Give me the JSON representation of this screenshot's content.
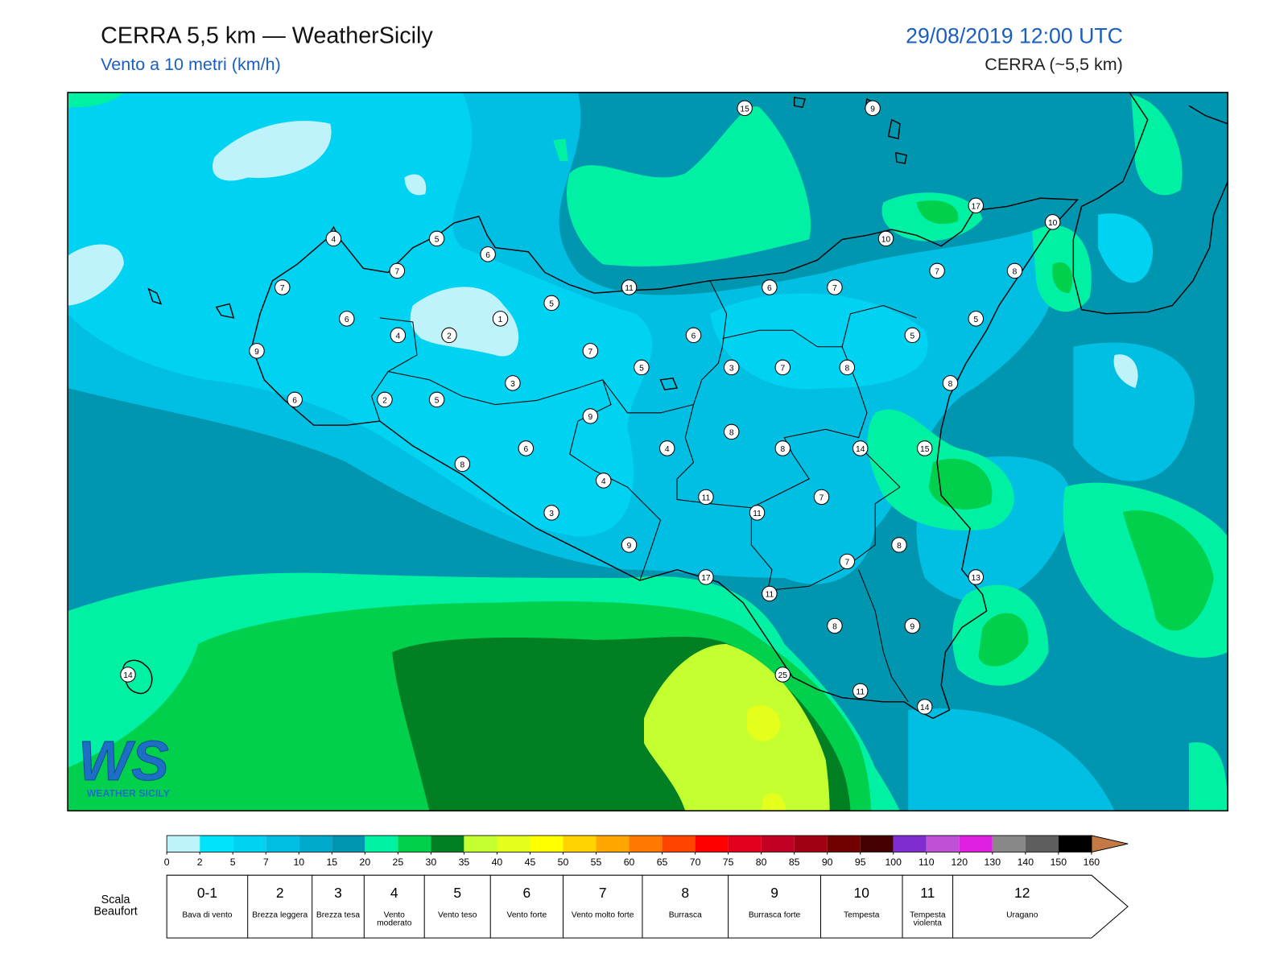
{
  "header": {
    "title": "CERRA 5,5 km — WeatherSicily",
    "subtitle": "Vento a 10 metri (km/h)",
    "datetime": "29/08/2019 12:00 UTC",
    "model": "CERRA (~5,5 km)"
  },
  "map": {
    "stations": [
      15,
      9,
      17,
      10,
      10,
      4,
      5,
      6,
      7,
      11,
      7,
      6,
      7,
      7,
      8,
      5,
      6,
      1,
      5,
      4,
      2,
      6,
      5,
      9,
      7,
      5,
      3,
      7,
      8,
      3,
      8,
      6,
      2,
      5,
      9,
      8,
      6,
      4,
      8,
      14,
      15,
      8,
      4,
      11,
      7,
      11,
      3,
      9,
      8,
      7,
      17,
      13,
      11,
      8,
      9,
      14,
      25,
      11,
      14
    ]
  },
  "logo": {
    "text": "WS",
    "caption": "WEATHER SICILY"
  },
  "colorbar": {
    "ticks": [
      0,
      2,
      5,
      7,
      10,
      15,
      20,
      25,
      30,
      35,
      40,
      45,
      50,
      55,
      60,
      65,
      70,
      75,
      80,
      85,
      90,
      95,
      100,
      110,
      120,
      130,
      140,
      150,
      160
    ],
    "colors": [
      "#bff3fb",
      "#00e4fa",
      "#00d2f2",
      "#00bfe2",
      "#00aacc",
      "#0096b0",
      "#00f0a4",
      "#00d04c",
      "#008022",
      "#c4ff30",
      "#e4ff1c",
      "#ffff00",
      "#ffd200",
      "#ffa600",
      "#ff7800",
      "#ff4400",
      "#ff0000",
      "#e2001c",
      "#c20024",
      "#a00012",
      "#720000",
      "#440000",
      "#7e2ed0",
      "#c050d6",
      "#e020e0",
      "#888888",
      "#5e5e5e",
      "#000000",
      "#844422",
      "#c47a44"
    ]
  },
  "beaufort": {
    "label": "Scala Beaufort",
    "levels": [
      {
        "force": "0-1",
        "desc": "Bava di vento"
      },
      {
        "force": "2",
        "desc": "Brezza leggera"
      },
      {
        "force": "3",
        "desc": "Brezza tesa"
      },
      {
        "force": "4",
        "desc": "Vento moderato"
      },
      {
        "force": "5",
        "desc": "Vento teso"
      },
      {
        "force": "6",
        "desc": "Vento forte"
      },
      {
        "force": "7",
        "desc": "Vento molto forte"
      },
      {
        "force": "8",
        "desc": "Burrasca"
      },
      {
        "force": "9",
        "desc": "Burrasca forte"
      },
      {
        "force": "10",
        "desc": "Tempesta"
      },
      {
        "force": "11",
        "desc": "Tempesta violenta"
      },
      {
        "force": "12",
        "desc": "Uragano"
      }
    ]
  }
}
